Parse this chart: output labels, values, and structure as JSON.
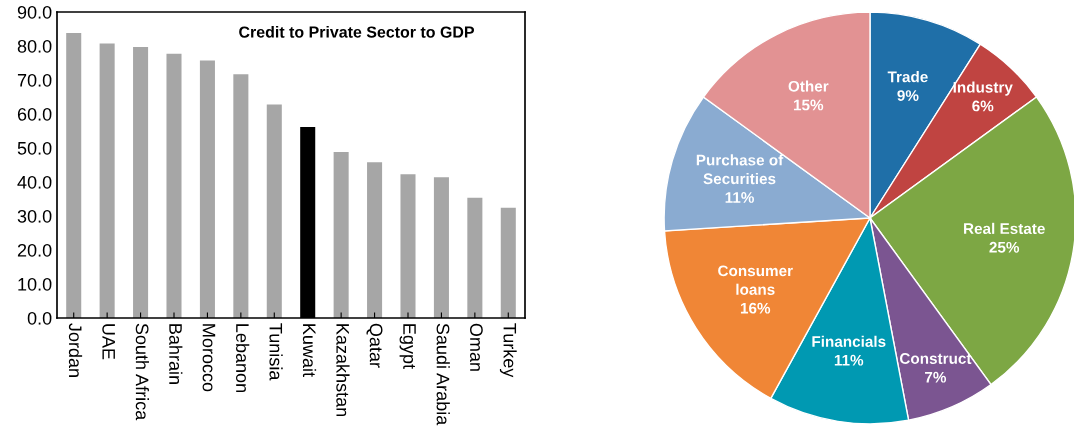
{
  "chart_data": [
    {
      "type": "bar",
      "title": "Credit to Private Sector to GDP",
      "categories": [
        "Jordan",
        "UAE",
        "South Africa",
        "Bahrain",
        "Morocco",
        "Lebanon",
        "Tunisia",
        "Kuwait",
        "Kazakhstan",
        "Qatar",
        "Egypt",
        "Saudi Arabia",
        "Oman",
        "Turkey"
      ],
      "values": [
        83.8,
        80.7,
        79.7,
        77.7,
        75.7,
        71.7,
        62.8,
        56.2,
        48.8,
        45.8,
        42.3,
        41.4,
        35.4,
        32.4
      ],
      "colors": [
        "#a6a6a6",
        "#a6a6a6",
        "#a6a6a6",
        "#a6a6a6",
        "#a6a6a6",
        "#a6a6a6",
        "#a6a6a6",
        "#000000",
        "#a6a6a6",
        "#a6a6a6",
        "#a6a6a6",
        "#a6a6a6",
        "#a6a6a6",
        "#a6a6a6"
      ],
      "ylim": [
        0,
        90
      ],
      "yticks": [
        {
          "value": 0,
          "label": "0.0"
        },
        {
          "value": 10,
          "label": "10.0"
        },
        {
          "value": 20,
          "label": "20.0"
        },
        {
          "value": 30,
          "label": "30.0"
        },
        {
          "value": 40,
          "label": "40.0"
        },
        {
          "value": 50,
          "label": "50.0"
        },
        {
          "value": 60,
          "label": "60.0"
        },
        {
          "value": 70,
          "label": "70.0"
        },
        {
          "value": 80,
          "label": "80.0"
        },
        {
          "value": 90,
          "label": "90.0"
        }
      ],
      "grid": false,
      "legend": false
    },
    {
      "type": "pie",
      "categories": [
        "Trade",
        "Industry",
        "Real Estate",
        "Construct",
        "Financials",
        "Consumer\nloans",
        "Purchase of\nSecurities",
        "Other"
      ],
      "values": [
        9,
        6,
        25,
        7,
        11,
        16,
        11,
        15
      ],
      "colors": [
        "#1f6fa8",
        "#c04441",
        "#7da744",
        "#7b5591",
        "#0099b2",
        "#f08636",
        "#8aabd1",
        "#e29293"
      ],
      "value_labels": [
        "9%",
        "6%",
        "25%",
        "7%",
        "11%",
        "16%",
        "11%",
        "15%"
      ],
      "legend": false
    }
  ]
}
